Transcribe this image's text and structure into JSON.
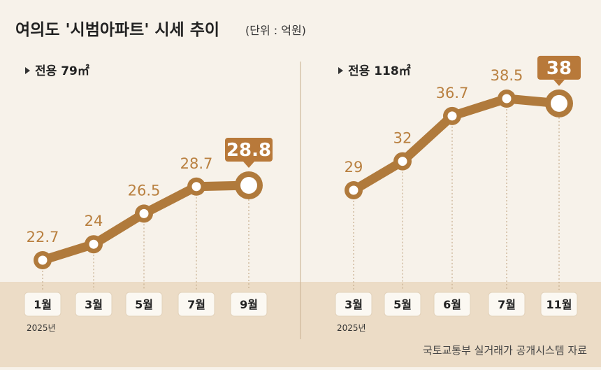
{
  "title": "여의도 '시범아파트' 시세 추이",
  "unit": "(단위 : 억원)",
  "source": "국토교통부 실거래가 공개시스템 자료",
  "colors": {
    "line": "#b07a3c",
    "value": "#b98040",
    "highlight": "#b8793a",
    "band": "#ecdcc6",
    "tick_box": "#fbf8f2",
    "divider": "#cfb89a"
  },
  "chart_data": [
    {
      "type": "line",
      "subtitle": "전용 79㎡",
      "categories": [
        "1월",
        "3월",
        "5월",
        "7월",
        "9월"
      ],
      "year_label": "2025년",
      "values": [
        22.7,
        24,
        26.5,
        28.7,
        28.8
      ],
      "labels": [
        "22.7",
        "24",
        "26.5",
        "28.7",
        "28.8"
      ],
      "highlight_index": 4
    },
    {
      "type": "line",
      "subtitle": "전용 118㎡",
      "categories": [
        "3월",
        "5월",
        "6월",
        "7월",
        "11월"
      ],
      "year_label": "2025년",
      "values": [
        29,
        32,
        36.7,
        38.5,
        38
      ],
      "labels": [
        "29",
        "32",
        "36.7",
        "38.5",
        "38"
      ],
      "highlight_index": 4
    }
  ]
}
